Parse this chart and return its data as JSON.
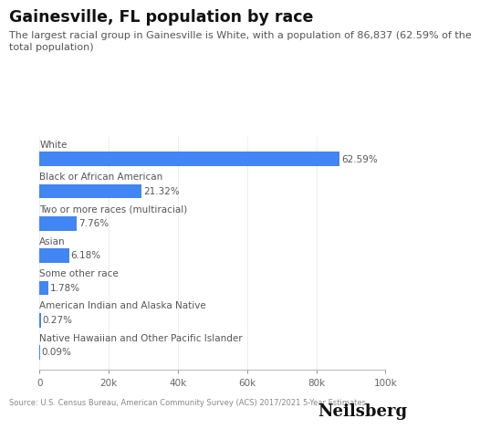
{
  "title": "Gainesville, FL population by race",
  "subtitle": "The largest racial group in Gainesville is White, with a population of 86,837 (62.59% of the\ntotal population)",
  "categories": [
    "White",
    "Black or African American",
    "Two or more races (multiracial)",
    "Asian",
    "Some other race",
    "American Indian and Alaska Native",
    "Native Hawaiian and Other Pacific Islander"
  ],
  "raw_values": [
    86837,
    29594,
    10774,
    8578,
    2471,
    375,
    125
  ],
  "labels": [
    "62.59%",
    "21.32%",
    "7.76%",
    "6.18%",
    "1.78%",
    "0.27%",
    "0.09%"
  ],
  "bar_color": "#4285f4",
  "background_color": "#ffffff",
  "title_fontsize": 12.5,
  "subtitle_fontsize": 8.0,
  "label_fontsize": 7.5,
  "category_fontsize": 7.5,
  "axis_fontsize": 7.5,
  "source_text": "Source: U.S. Census Bureau, American Community Survey (ACS) 2017/2021 5-Year Estimates",
  "brand_text": "Neilsberg",
  "xlim": [
    0,
    100000
  ],
  "xticks": [
    0,
    20000,
    40000,
    60000,
    80000,
    100000
  ],
  "xtick_labels": [
    "0",
    "20k",
    "40k",
    "60k",
    "80k",
    "100k"
  ]
}
